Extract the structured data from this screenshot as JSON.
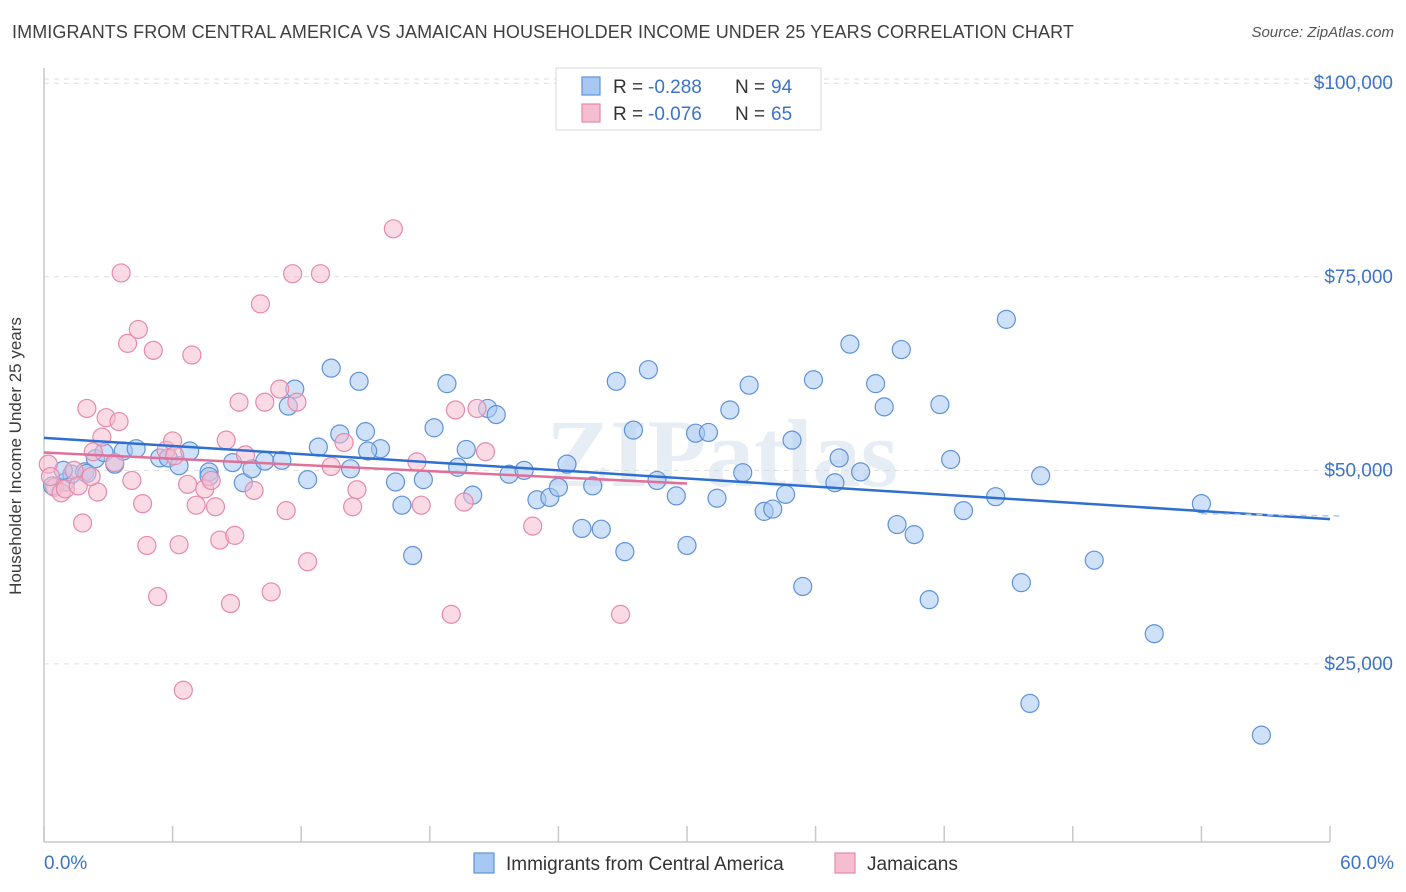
{
  "title": "IMMIGRANTS FROM CENTRAL AMERICA VS JAMAICAN HOUSEHOLDER INCOME UNDER 25 YEARS CORRELATION CHART",
  "source": "Source: ZipAtlas.com",
  "watermark": "ZIPatlas",
  "colors": {
    "blue_fill": "#a7c8f2",
    "blue_stroke": "#5f92d8",
    "blue_line": "#2f6fcf",
    "pink_fill": "#f6bcd0",
    "pink_stroke": "#e68aa8",
    "pink_line": "#e0709a",
    "axis_text": "#3b73c8",
    "grid": "#dddddd"
  },
  "legend_top": [
    {
      "r_label": "R =",
      "r_value": "-0.288",
      "n_label": "N =",
      "n_value": "94",
      "color": "blue"
    },
    {
      "r_label": "R =",
      "r_value": "-0.076",
      "n_label": "N =",
      "n_value": "65",
      "color": "pink"
    }
  ],
  "legend_bottom": [
    {
      "label": "Immigrants from Central America",
      "color": "blue"
    },
    {
      "label": "Jamaicans",
      "color": "pink"
    }
  ],
  "chart_data": {
    "type": "scatter",
    "ylabel": "Householder Income Under 25 years",
    "x_tick_labels": [
      "0.0%",
      "60.0%"
    ],
    "y_tick_labels": [
      "$100,000",
      "$75,000",
      "$50,000",
      "$25,000"
    ],
    "y_ticks": [
      100000,
      75000,
      50000,
      25000
    ],
    "xlim": [
      0,
      60
    ],
    "ylim": [
      2000,
      103000
    ],
    "grid": true,
    "legend_position": "top-center",
    "series": [
      {
        "name": "Immigrants from Central America",
        "color": "blue",
        "trend": {
          "x0": 0,
          "y0": 54200,
          "x1": 60,
          "y1": 43700
        },
        "points": [
          [
            0.4,
            48000
          ],
          [
            1.0,
            48500
          ],
          [
            1.3,
            49500
          ],
          [
            1.9,
            49800
          ],
          [
            2.4,
            51500
          ],
          [
            2.8,
            52300
          ],
          [
            3.3,
            50800
          ],
          [
            3.7,
            52500
          ],
          [
            4.3,
            52800
          ],
          [
            5.4,
            51600
          ],
          [
            5.8,
            51600
          ],
          [
            6.3,
            50600
          ],
          [
            6.8,
            52500
          ],
          [
            7.7,
            49800
          ],
          [
            7.7,
            49200
          ],
          [
            8.8,
            51000
          ],
          [
            9.3,
            48400
          ],
          [
            9.7,
            50200
          ],
          [
            10.3,
            51200
          ],
          [
            11.1,
            51300
          ],
          [
            11.4,
            58300
          ],
          [
            11.7,
            60500
          ],
          [
            12.3,
            48800
          ],
          [
            12.8,
            53000
          ],
          [
            13.4,
            63200
          ],
          [
            13.8,
            54700
          ],
          [
            14.3,
            50200
          ],
          [
            14.7,
            61500
          ],
          [
            15.0,
            55000
          ],
          [
            15.7,
            52800
          ],
          [
            16.4,
            48500
          ],
          [
            16.7,
            45500
          ],
          [
            17.2,
            39000
          ],
          [
            17.7,
            48800
          ],
          [
            18.2,
            55500
          ],
          [
            18.8,
            61200
          ],
          [
            19.3,
            50400
          ],
          [
            19.7,
            52700
          ],
          [
            20.0,
            46800
          ],
          [
            20.7,
            58000
          ],
          [
            21.1,
            57200
          ],
          [
            21.7,
            49500
          ],
          [
            22.4,
            50000
          ],
          [
            23.0,
            46200
          ],
          [
            23.6,
            46500
          ],
          [
            24.0,
            47800
          ],
          [
            24.4,
            50800
          ],
          [
            25.1,
            42500
          ],
          [
            25.6,
            48000
          ],
          [
            26.0,
            42400
          ],
          [
            26.7,
            61500
          ],
          [
            27.1,
            39500
          ],
          [
            27.5,
            55200
          ],
          [
            28.2,
            63000
          ],
          [
            28.6,
            48700
          ],
          [
            29.5,
            46700
          ],
          [
            30.0,
            40300
          ],
          [
            30.4,
            54800
          ],
          [
            31.0,
            54900
          ],
          [
            31.4,
            46400
          ],
          [
            32.0,
            57800
          ],
          [
            32.6,
            49700
          ],
          [
            32.9,
            61000
          ],
          [
            33.6,
            44700
          ],
          [
            34.0,
            45000
          ],
          [
            34.6,
            46900
          ],
          [
            34.9,
            53900
          ],
          [
            35.4,
            35000
          ],
          [
            35.9,
            61700
          ],
          [
            36.9,
            48400
          ],
          [
            37.1,
            51600
          ],
          [
            37.6,
            66300
          ],
          [
            38.1,
            49800
          ],
          [
            38.8,
            61200
          ],
          [
            39.2,
            58200
          ],
          [
            39.8,
            43000
          ],
          [
            40.0,
            65600
          ],
          [
            40.6,
            41700
          ],
          [
            41.3,
            33300
          ],
          [
            41.8,
            58500
          ],
          [
            42.3,
            51400
          ],
          [
            42.9,
            44800
          ],
          [
            44.4,
            46600
          ],
          [
            44.9,
            69500
          ],
          [
            45.6,
            35500
          ],
          [
            46.0,
            19900
          ],
          [
            46.5,
            49300
          ],
          [
            49.0,
            38400
          ],
          [
            51.8,
            28900
          ],
          [
            54.0,
            45700
          ],
          [
            56.8,
            15800
          ],
          [
            0.9,
            50000
          ],
          [
            2.0,
            49600
          ],
          [
            15.1,
            52500
          ]
        ]
      },
      {
        "name": "Jamaicans",
        "color": "pink",
        "trend": {
          "x0": 0,
          "y0": 52300,
          "x1": 30,
          "y1": 48300
        },
        "points": [
          [
            0.2,
            50800
          ],
          [
            0.5,
            47800
          ],
          [
            0.8,
            47100
          ],
          [
            1.0,
            47600
          ],
          [
            1.4,
            50000
          ],
          [
            1.8,
            43200
          ],
          [
            2.0,
            58000
          ],
          [
            2.3,
            52400
          ],
          [
            2.5,
            47200
          ],
          [
            2.7,
            54300
          ],
          [
            2.9,
            56800
          ],
          [
            3.3,
            51000
          ],
          [
            3.5,
            56300
          ],
          [
            3.6,
            75500
          ],
          [
            3.9,
            66400
          ],
          [
            4.1,
            48700
          ],
          [
            4.4,
            68200
          ],
          [
            4.6,
            45700
          ],
          [
            4.8,
            40300
          ],
          [
            5.1,
            65500
          ],
          [
            5.3,
            33700
          ],
          [
            5.7,
            52600
          ],
          [
            6.0,
            53800
          ],
          [
            6.3,
            40400
          ],
          [
            6.5,
            21600
          ],
          [
            6.7,
            48200
          ],
          [
            6.9,
            64900
          ],
          [
            7.1,
            45500
          ],
          [
            7.5,
            47600
          ],
          [
            7.8,
            48700
          ],
          [
            8.0,
            45300
          ],
          [
            8.2,
            41000
          ],
          [
            8.5,
            53900
          ],
          [
            8.7,
            32800
          ],
          [
            8.9,
            41600
          ],
          [
            9.1,
            58800
          ],
          [
            9.4,
            52000
          ],
          [
            9.8,
            47400
          ],
          [
            10.1,
            71500
          ],
          [
            10.3,
            58800
          ],
          [
            10.6,
            34300
          ],
          [
            11.0,
            60500
          ],
          [
            11.3,
            44800
          ],
          [
            11.6,
            75400
          ],
          [
            11.8,
            58800
          ],
          [
            12.3,
            38200
          ],
          [
            12.9,
            75400
          ],
          [
            13.4,
            50500
          ],
          [
            14.0,
            53600
          ],
          [
            14.4,
            45300
          ],
          [
            14.6,
            47500
          ],
          [
            16.3,
            81200
          ],
          [
            17.4,
            51100
          ],
          [
            17.6,
            45500
          ],
          [
            19.0,
            31400
          ],
          [
            19.2,
            57800
          ],
          [
            19.6,
            45900
          ],
          [
            20.2,
            58000
          ],
          [
            20.6,
            52400
          ],
          [
            22.8,
            42800
          ],
          [
            26.9,
            31400
          ],
          [
            1.6,
            48000
          ],
          [
            2.2,
            49200
          ],
          [
            6.1,
            51900
          ],
          [
            0.3,
            49200
          ]
        ]
      }
    ]
  }
}
